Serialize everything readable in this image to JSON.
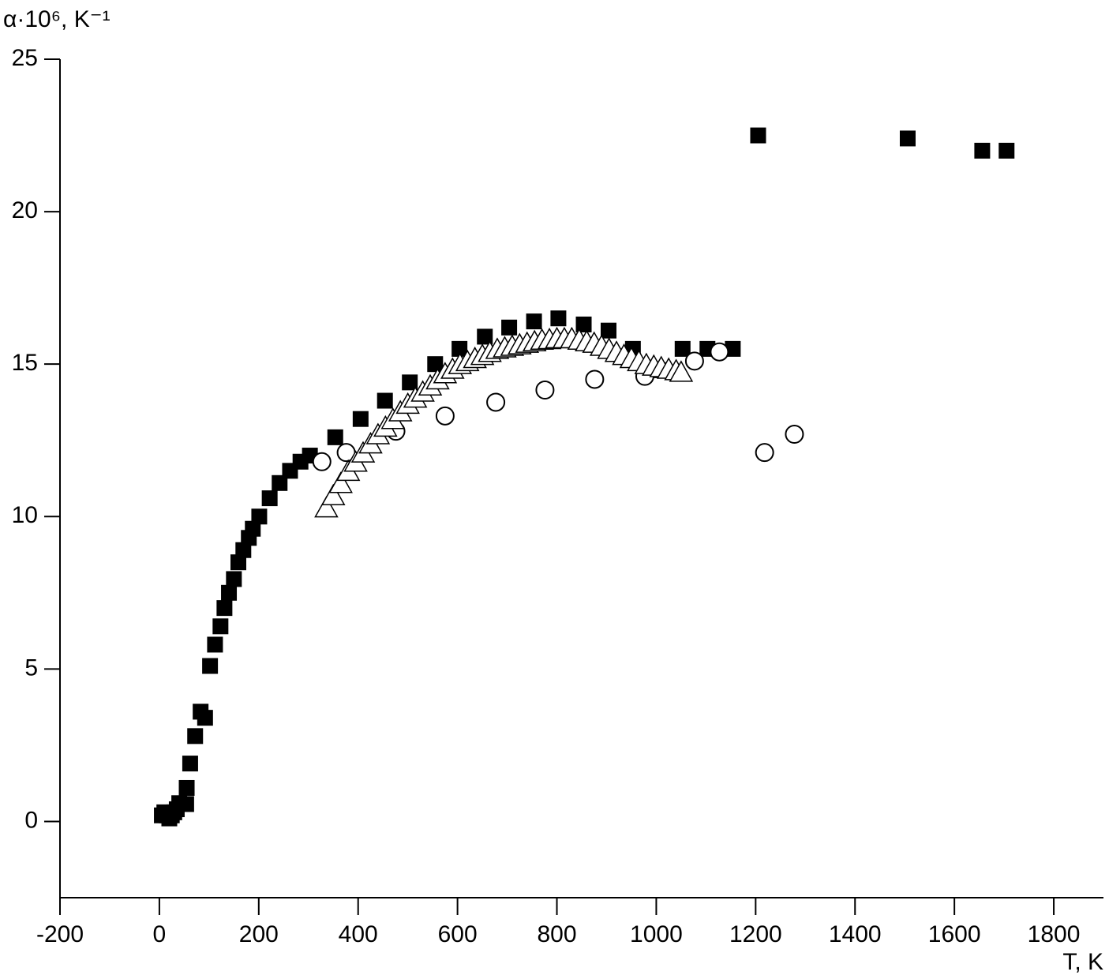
{
  "chart_data": {
    "type": "scatter",
    "ylabel": "α·10⁶, K⁻¹",
    "xlabel": "T, K",
    "xlim": [
      -200,
      1900
    ],
    "ylim": [
      -2.5,
      25
    ],
    "xticks": [
      -200,
      0,
      200,
      400,
      600,
      800,
      1000,
      1200,
      1400,
      1600,
      1800
    ],
    "yticks": [
      0,
      5,
      10,
      15,
      20,
      25
    ],
    "series": [
      {
        "marker": "square",
        "color": "#000000",
        "x": [
          5,
          10,
          15,
          20,
          25,
          30,
          35,
          40,
          54,
          55,
          62,
          72,
          83,
          92,
          102,
          112,
          123,
          131,
          140,
          150,
          159,
          169,
          180,
          188,
          201,
          222,
          242,
          263,
          284,
          303,
          354,
          405,
          454,
          504,
          555,
          604,
          655,
          704,
          754,
          803,
          854,
          904,
          953,
          1004,
          1053,
          1103,
          1154,
          1205,
          1506,
          1656,
          1705
        ],
        "values": [
          0.2,
          0.3,
          0.2,
          0.1,
          0.2,
          0.3,
          0.4,
          0.6,
          0.57,
          1.1,
          1.9,
          2.8,
          3.6,
          3.4,
          5.1,
          5.8,
          6.4,
          7.0,
          7.5,
          7.95,
          8.5,
          8.9,
          9.3,
          9.6,
          10.0,
          10.6,
          11.1,
          11.5,
          11.8,
          12.0,
          12.6,
          13.2,
          13.8,
          14.4,
          15.0,
          15.5,
          15.9,
          16.2,
          16.4,
          16.5,
          16.3,
          16.1,
          15.5,
          14.8,
          15.5,
          15.5,
          15.5,
          22.5,
          22.4,
          22.0,
          22.0
        ]
      },
      {
        "marker": "circle",
        "color": "#000000",
        "x": [
          327,
          376,
          476,
          575,
          677,
          776,
          876,
          977,
          1077,
          1127,
          1218,
          1278
        ],
        "values": [
          11.8,
          12.1,
          12.8,
          13.3,
          13.75,
          14.15,
          14.5,
          14.6,
          15.1,
          15.4,
          12.1,
          12.7
        ]
      },
      {
        "marker": "triangle",
        "color": "#000000",
        "x": [
          336,
          350,
          365,
          380,
          395,
          410,
          425,
          440,
          455,
          470,
          485,
          500,
          515,
          530,
          545,
          560,
          575,
          590,
          605,
          620,
          635,
          650,
          665,
          680,
          695,
          710,
          725,
          740,
          755,
          770,
          785,
          800,
          815,
          830,
          845,
          860,
          875,
          890,
          905,
          920,
          935,
          950,
          965,
          980,
          995,
          1010,
          1025,
          1040,
          1050
        ],
        "values": [
          10.3,
          10.7,
          11.1,
          11.5,
          11.8,
          12.1,
          12.4,
          12.7,
          12.95,
          13.2,
          13.45,
          13.7,
          13.9,
          14.1,
          14.3,
          14.5,
          14.7,
          14.85,
          15.0,
          15.1,
          15.2,
          15.3,
          15.4,
          15.5,
          15.55,
          15.6,
          15.65,
          15.7,
          15.75,
          15.8,
          15.82,
          15.85,
          15.85,
          15.85,
          15.8,
          15.75,
          15.7,
          15.6,
          15.5,
          15.4,
          15.3,
          15.2,
          15.1,
          15.0,
          14.95,
          14.9,
          14.85,
          14.8,
          14.75
        ]
      }
    ]
  }
}
